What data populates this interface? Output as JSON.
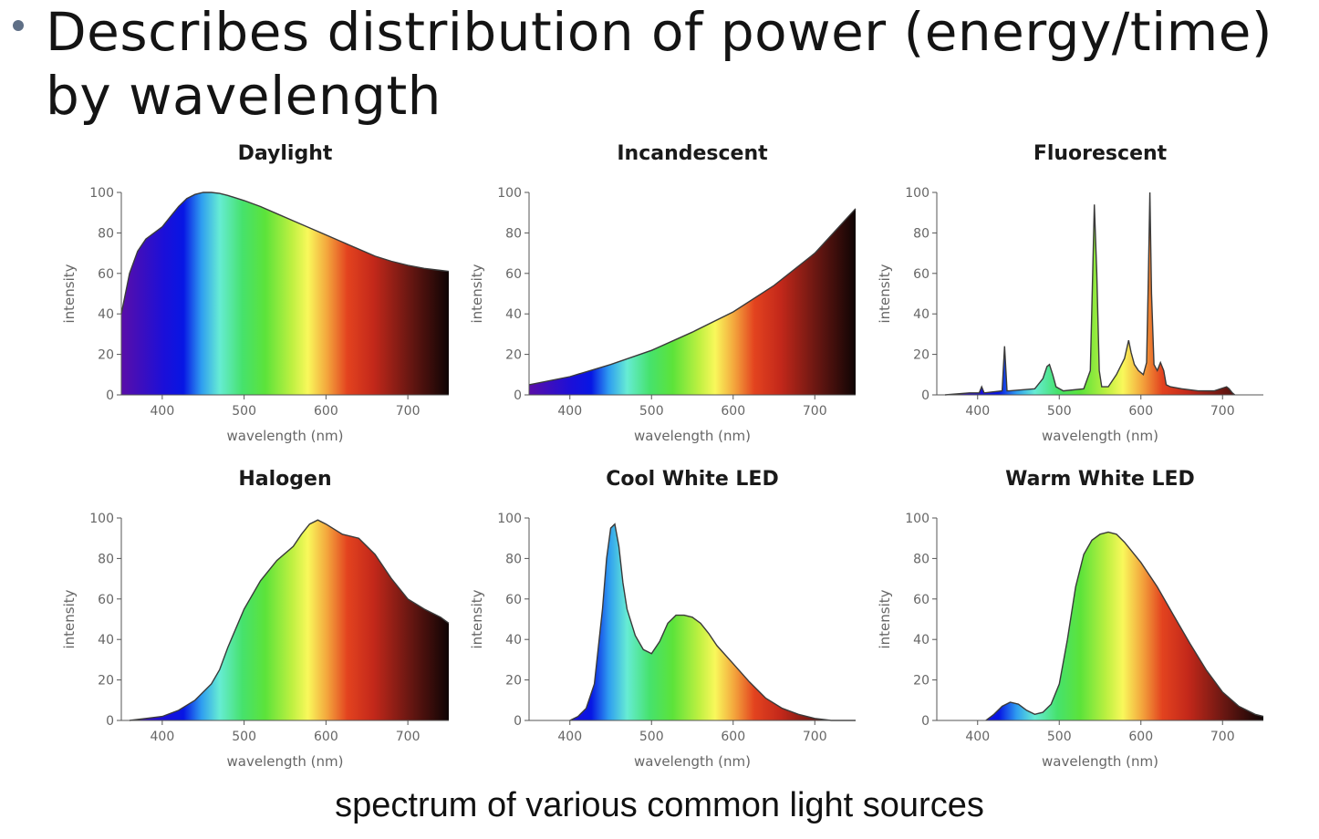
{
  "slide": {
    "bullet": "Describes distribution of power (energy/time) by wavelength",
    "caption": "spectrum of various common light sources"
  },
  "chart_data": [
    {
      "type": "area",
      "title": "Daylight",
      "xlabel": "wavelength (nm)",
      "ylabel": "intensity",
      "xlim": [
        350,
        750
      ],
      "ylim": [
        0,
        100
      ],
      "xticks": [
        400,
        500,
        600,
        700
      ],
      "yticks": [
        0,
        20,
        40,
        60,
        80,
        100
      ],
      "x": [
        350,
        360,
        370,
        380,
        390,
        400,
        410,
        420,
        430,
        440,
        450,
        460,
        470,
        480,
        500,
        520,
        540,
        560,
        580,
        600,
        620,
        640,
        660,
        680,
        700,
        720,
        740,
        750
      ],
      "y": [
        40,
        60,
        71,
        77,
        80,
        83,
        88,
        93,
        97,
        99,
        100,
        100,
        99.5,
        98.5,
        96,
        93,
        89.5,
        86,
        82.5,
        79,
        75.5,
        72,
        68.5,
        66,
        64,
        62.5,
        61.5,
        61
      ]
    },
    {
      "type": "area",
      "title": "Incandescent",
      "xlabel": "wavelength (nm)",
      "ylabel": "intensity",
      "xlim": [
        350,
        750
      ],
      "ylim": [
        0,
        100
      ],
      "xticks": [
        400,
        500,
        600,
        700
      ],
      "yticks": [
        0,
        20,
        40,
        60,
        80,
        100
      ],
      "x": [
        350,
        400,
        450,
        500,
        550,
        600,
        650,
        700,
        750
      ],
      "y": [
        5,
        9,
        15,
        22,
        31,
        41,
        54,
        70,
        92
      ]
    },
    {
      "type": "area",
      "title": "Fluorescent",
      "xlabel": "wavelength (nm)",
      "ylabel": "intensity",
      "xlim": [
        350,
        750
      ],
      "ylim": [
        0,
        100
      ],
      "xticks": [
        400,
        500,
        600,
        700
      ],
      "yticks": [
        0,
        20,
        40,
        60,
        80,
        100
      ],
      "x": [
        360,
        390,
        402,
        405,
        408,
        430,
        433,
        436,
        439,
        470,
        480,
        485,
        488,
        492,
        496,
        505,
        530,
        538,
        541,
        543,
        546,
        549,
        552,
        560,
        570,
        580,
        585,
        588,
        592,
        597,
        603,
        607,
        609,
        611,
        613,
        616,
        620,
        624,
        628,
        631,
        636,
        650,
        670,
        690,
        705,
        708,
        712,
        715
      ],
      "y": [
        0,
        1,
        1,
        4,
        1,
        2,
        24,
        2,
        2,
        3,
        8,
        14,
        15,
        10,
        4,
        2,
        3,
        12,
        60,
        94,
        60,
        12,
        4,
        4,
        10,
        18,
        27,
        21,
        15,
        12,
        10,
        16,
        55,
        100,
        50,
        15,
        12,
        16,
        12,
        5,
        4,
        3,
        2,
        2,
        4,
        3,
        1,
        0
      ]
    },
    {
      "type": "area",
      "title": "Halogen",
      "xlabel": "wavelength (nm)",
      "ylabel": "intensity",
      "xlim": [
        350,
        750
      ],
      "ylim": [
        0,
        100
      ],
      "xticks": [
        400,
        500,
        600,
        700
      ],
      "yticks": [
        0,
        20,
        40,
        60,
        80,
        100
      ],
      "x": [
        360,
        380,
        400,
        420,
        440,
        460,
        470,
        480,
        500,
        520,
        540,
        560,
        570,
        580,
        590,
        600,
        620,
        640,
        660,
        680,
        700,
        720,
        740,
        750
      ],
      "y": [
        0,
        1,
        2,
        5,
        10,
        18,
        25,
        36,
        55,
        69,
        79,
        86,
        92,
        97,
        99,
        97,
        92,
        90,
        82,
        70,
        60,
        55,
        51,
        48
      ]
    },
    {
      "type": "area",
      "title": "Cool White LED",
      "xlabel": "wavelength (nm)",
      "ylabel": "intensity",
      "xlim": [
        350,
        750
      ],
      "ylim": [
        0,
        100
      ],
      "xticks": [
        400,
        500,
        600,
        700
      ],
      "yticks": [
        0,
        20,
        40,
        60,
        80,
        100
      ],
      "x": [
        400,
        410,
        420,
        430,
        440,
        445,
        450,
        455,
        460,
        465,
        470,
        480,
        490,
        500,
        510,
        520,
        530,
        540,
        550,
        560,
        570,
        580,
        600,
        620,
        640,
        660,
        680,
        700,
        720,
        750
      ],
      "y": [
        0,
        2,
        6,
        18,
        55,
        80,
        95,
        97,
        86,
        68,
        55,
        42,
        35,
        33,
        39,
        48,
        52,
        52,
        51,
        48,
        43,
        37,
        28,
        19,
        11,
        6,
        3,
        1,
        0,
        0
      ]
    },
    {
      "type": "area",
      "title": "Warm White LED",
      "xlabel": "wavelength (nm)",
      "ylabel": "intensity",
      "xlim": [
        350,
        750
      ],
      "ylim": [
        0,
        100
      ],
      "xticks": [
        400,
        500,
        600,
        700
      ],
      "yticks": [
        0,
        20,
        40,
        60,
        80,
        100
      ],
      "x": [
        410,
        420,
        430,
        440,
        450,
        460,
        470,
        480,
        490,
        500,
        510,
        520,
        530,
        540,
        550,
        560,
        570,
        580,
        590,
        600,
        620,
        640,
        660,
        680,
        700,
        720,
        740,
        750
      ],
      "y": [
        0,
        3,
        7,
        9,
        8,
        5,
        3,
        4,
        8,
        18,
        40,
        66,
        82,
        89,
        92,
        93,
        92,
        88,
        83,
        78,
        66,
        52,
        38,
        25,
        14,
        7,
        3,
        2
      ]
    }
  ]
}
